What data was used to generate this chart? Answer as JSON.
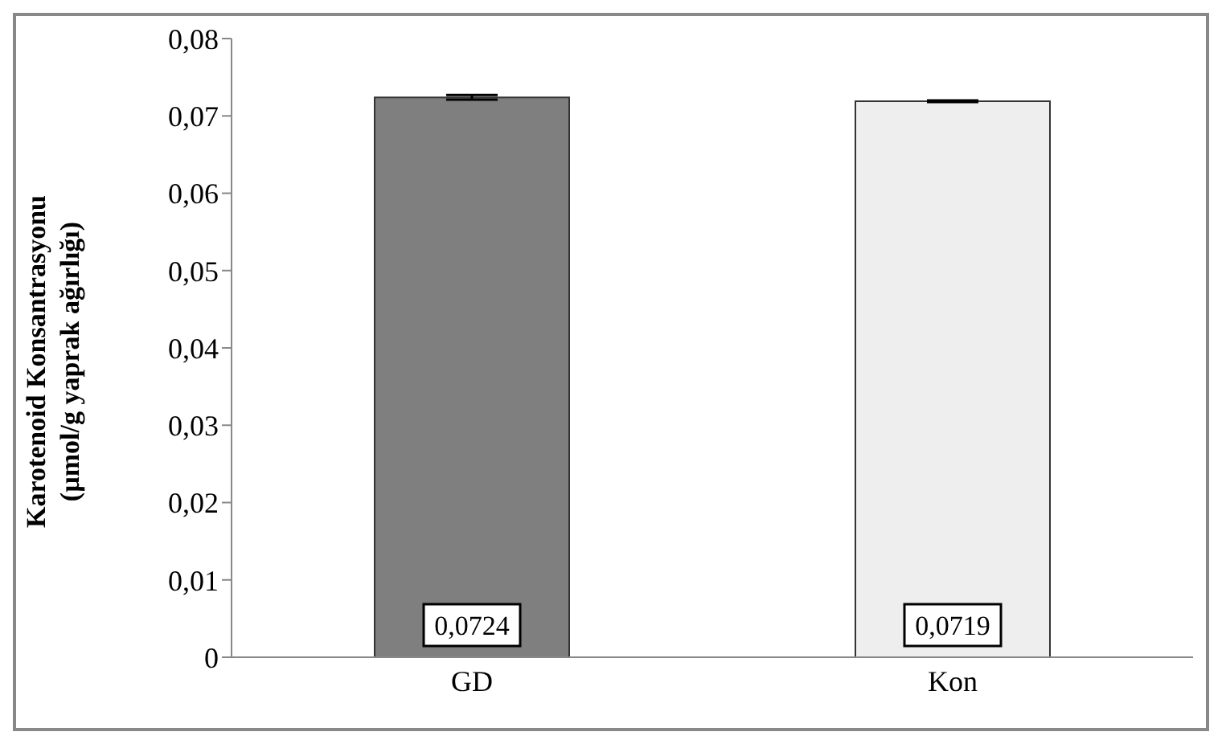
{
  "chart_data": {
    "type": "bar",
    "ylabel": "Karotenoid Konsantrasyonu\n(µmol/g yaprak ağırlığı)",
    "categories": [
      "GD",
      "Kon"
    ],
    "values": [
      0.0724,
      0.0719
    ],
    "colors": [
      "#7f7f7f",
      "#eeeeee"
    ],
    "errors": [
      0.0003,
      0.0001
    ],
    "value_labels": [
      "0,0724",
      "0,0719"
    ],
    "ylim": [
      0,
      0.08
    ],
    "yticks": [
      {
        "value": 0,
        "label": "0"
      },
      {
        "value": 0.01,
        "label": "0,01"
      },
      {
        "value": 0.02,
        "label": "0,02"
      },
      {
        "value": 0.03,
        "label": "0,03"
      },
      {
        "value": 0.04,
        "label": "0,04"
      },
      {
        "value": 0.05,
        "label": "0,05"
      },
      {
        "value": 0.06,
        "label": "0,06"
      },
      {
        "value": 0.07,
        "label": "0,07"
      },
      {
        "value": 0.08,
        "label": "0,08"
      }
    ],
    "grid": false,
    "legend": false
  }
}
